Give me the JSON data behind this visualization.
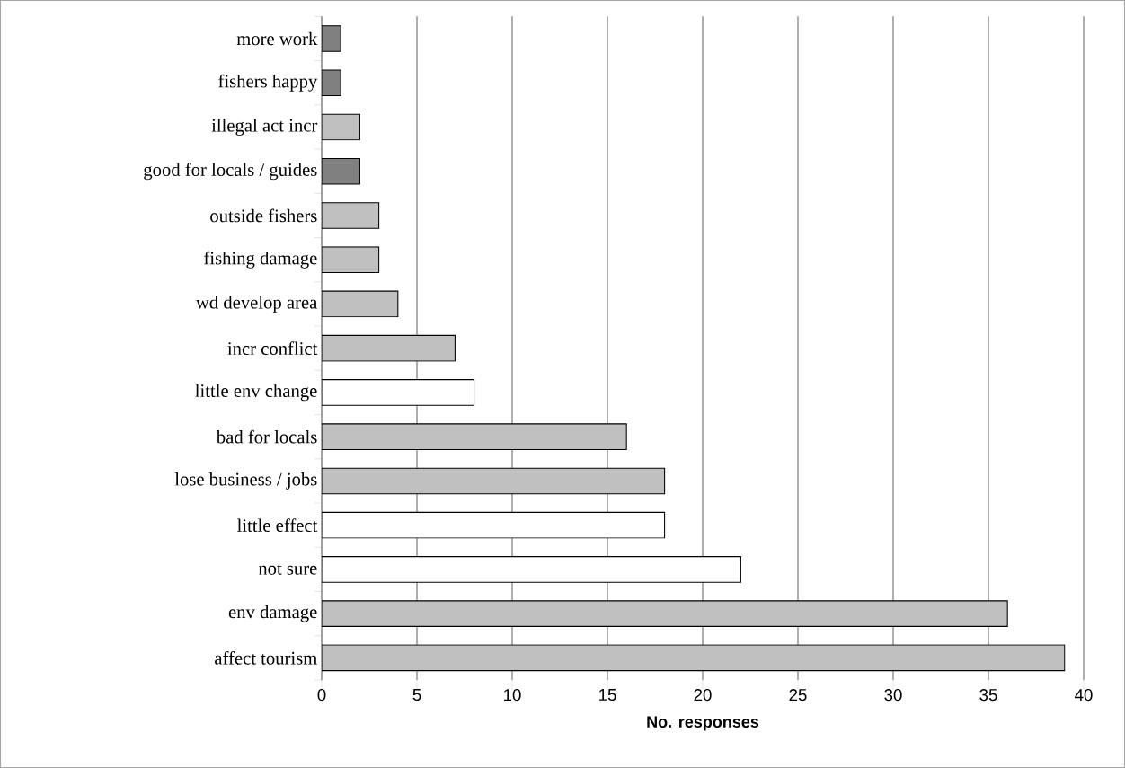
{
  "chart_data": {
    "type": "bar",
    "orientation": "horizontal",
    "xlabel": "No. responses",
    "categories": [
      "more work",
      "fishers happy",
      "illegal act incr",
      "good for locals / guides",
      "outside fishers",
      "fishing damage",
      "wd develop area",
      "incr conflict",
      "little env change",
      "bad for locals",
      "lose business / jobs",
      "little effect",
      "not sure",
      "env damage",
      "affect tourism"
    ],
    "values": [
      1,
      1,
      2,
      2,
      3,
      3,
      4,
      7,
      8,
      16,
      18,
      18,
      22,
      36,
      39
    ],
    "colors": [
      "#808080",
      "#808080",
      "#c0c0c0",
      "#808080",
      "#c0c0c0",
      "#c0c0c0",
      "#c0c0c0",
      "#c0c0c0",
      "#ffffff",
      "#c0c0c0",
      "#c0c0c0",
      "#ffffff",
      "#ffffff",
      "#c0c0c0",
      "#c0c0c0"
    ],
    "xlim": [
      0,
      40
    ],
    "xticks": [
      0,
      5,
      10,
      15,
      20,
      25,
      30,
      35,
      40
    ],
    "grid": "x"
  }
}
